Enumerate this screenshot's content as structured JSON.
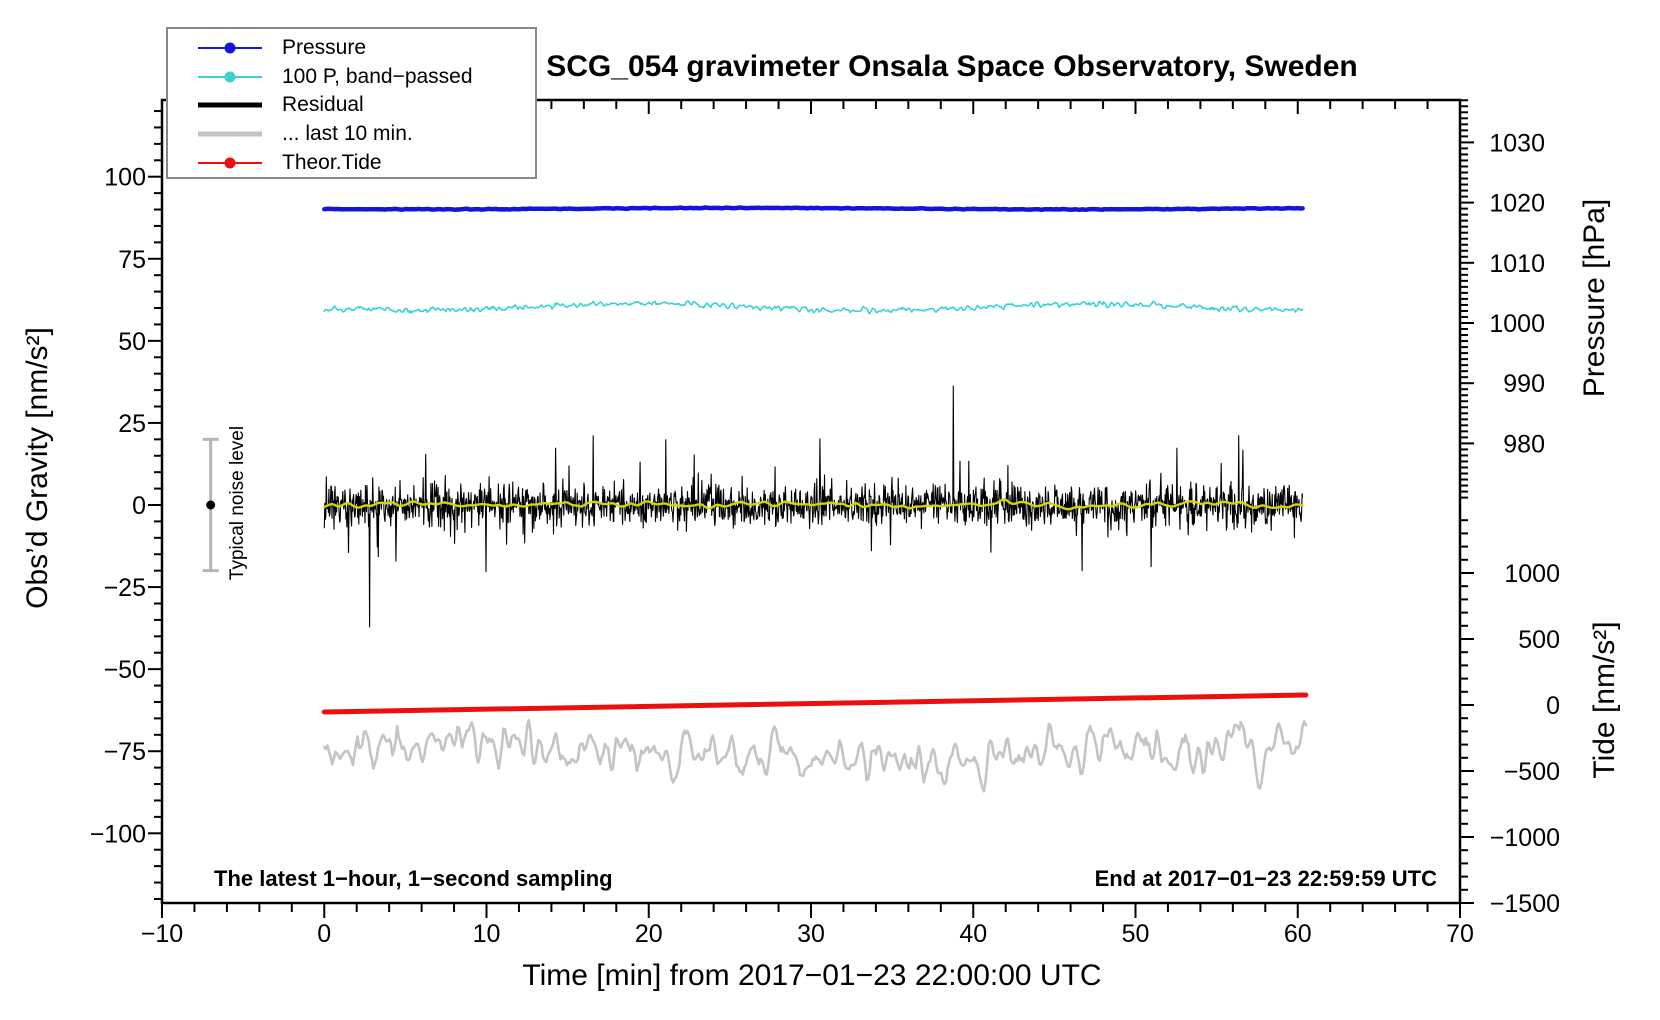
{
  "title": "SCG_054 gravimeter Onsala Space Observatory, Sweden",
  "annotations": {
    "sampling_note": "The latest 1−hour, 1−second sampling",
    "end_note": "End at 2017−01−23 22:59:59 UTC",
    "noise_bar_label": "Typical noise level"
  },
  "legend": [
    {
      "label": "Pressure",
      "color": "#1414dd",
      "line_width": 2,
      "dot": true
    },
    {
      "label": "100 P, band−passed",
      "color": "#3cd2d2",
      "line_width": 2,
      "dot": true
    },
    {
      "label": "Residual",
      "color": "#000000",
      "line_width": 5,
      "dot": false
    },
    {
      "label": "... last 10 min.",
      "color": "#c4c4c4",
      "line_width": 5,
      "dot": false
    },
    {
      "label": "Theor.Tide",
      "color": "#ec0f0f",
      "line_width": 2,
      "dot": true
    }
  ],
  "chart_data": {
    "type": "line",
    "title": "SCG_054 gravimeter Onsala Space Observatory, Sweden",
    "x_axis": {
      "label": "Time [min] from 2017−01−23 22:00:00 UTC",
      "min": -10,
      "max": 70,
      "major_ticks": [
        -10,
        0,
        10,
        20,
        30,
        40,
        50,
        60,
        70
      ],
      "minor_step": 2
    },
    "left_axis": {
      "label": "Obs’d Gravity [nm/s²]",
      "min": -121,
      "max": 123,
      "major_ticks": [
        -100,
        -75,
        -50,
        -25,
        0,
        25,
        50,
        75,
        100
      ],
      "minor_step": 5
    },
    "right_axis_pressure": {
      "label": "Pressure [hPa]",
      "major_ticks": [
        980,
        990,
        1000,
        1010,
        1020,
        1030
      ],
      "minor_step": 1
    },
    "right_axis_tide": {
      "label": "Tide [nm/s²]",
      "major_ticks": [
        -1500,
        -1000,
        -500,
        0,
        500,
        1000
      ],
      "minor_step": 100
    },
    "grid": false,
    "legend_position": "top-left",
    "sampling_window_min": [
      0,
      60
    ],
    "series": [
      {
        "name": "Pressure",
        "axis": "pressure",
        "color": "#1414dd",
        "width": 4.5,
        "style": "noise",
        "x_start": 0,
        "x_end": 60.3,
        "base": 1019.0,
        "std": 0.05,
        "smooth": 1,
        "drift": 0.12,
        "drift_cycles": 1.5,
        "points": 700,
        "seed": 101
      },
      {
        "name": "100 P, band−passed",
        "axis": "gravity",
        "color": "#3cd2d2",
        "width": 1.6,
        "style": "noise",
        "x_start": 0,
        "x_end": 60.3,
        "base": 60.3,
        "std": 0.7,
        "smooth": 1,
        "drift": 1.0,
        "drift_cycles": 2.2,
        "points": 950,
        "seed": 202
      },
      {
        "name": "Residual",
        "axis": "gravity",
        "color": "#000000",
        "width": 1.1,
        "style": "spiky",
        "x_start": 0,
        "x_end": 60.3,
        "base": 0,
        "std": 3.2,
        "outlier_frac": 0.05,
        "outlier_scale": 2.6,
        "points": 1900,
        "seed": 303
      },
      {
        "name": "Residual smoothed",
        "axis": "gravity",
        "color": "#d4d402",
        "width": 2.4,
        "style": "noise",
        "x_start": 0,
        "x_end": 60.3,
        "base": 0.1,
        "std": 1.1,
        "smooth": 6,
        "drift": 0.4,
        "drift_cycles": 5,
        "points": 600,
        "seed": 404
      },
      {
        "name": "... last 10 min.",
        "axis": "gravity",
        "color": "#c4c4c4",
        "width": 2.6,
        "style": "noise",
        "x_start": 0,
        "x_end": 60.5,
        "base": -75.5,
        "std": 8,
        "smooth": 2,
        "drift": 2.0,
        "drift_cycles": 1.2,
        "points": 620,
        "seed": 505
      },
      {
        "name": "Theor.Tide",
        "axis": "tide",
        "color": "#ec0f0f",
        "width": 5,
        "style": "linear",
        "x_start": 0,
        "x_end": 60.5,
        "value_start": -53,
        "value_end": 76
      }
    ],
    "noise_bar": {
      "x": -7,
      "axis": "gravity",
      "center": 0,
      "half_range": 20,
      "bar_color": "#b4b4b4",
      "dot_color": "#000000"
    }
  }
}
